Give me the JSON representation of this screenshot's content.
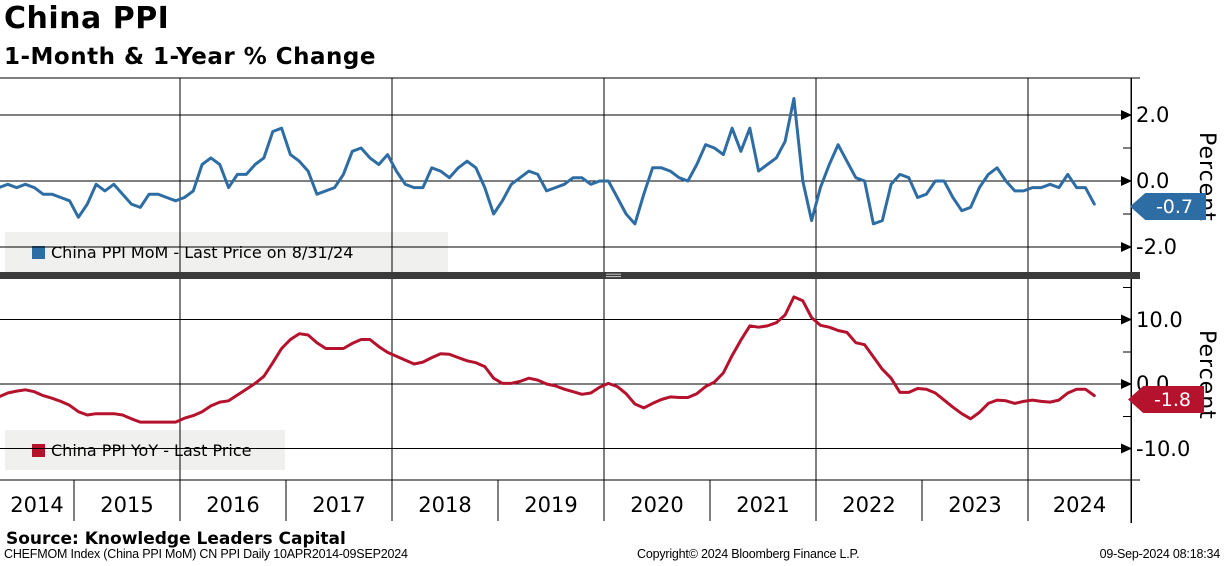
{
  "header": {
    "title": "China PPI",
    "subtitle": "1-Month & 1-Year % Change"
  },
  "x_axis": {
    "years": [
      "2014",
      "2015",
      "2016",
      "2017",
      "2018",
      "2019",
      "2020",
      "2021",
      "2022",
      "2023",
      "2024"
    ]
  },
  "x_gridline_years": [
    2016,
    2018,
    2020,
    2022,
    2024
  ],
  "colors": {
    "mom": "#2e6da4",
    "yoy": "#b5122d",
    "separator": "#3b3b3b",
    "legend_bg": "#f0f0ef",
    "grid": "#000000"
  },
  "footer": {
    "source": "Source: Knowledge Leaders Capital",
    "ticker_info": "CHEFMOM Index (China PPI MoM) CN PPI  Daily 10APR2014-09SEP2024",
    "copyright": "Copyright© 2024 Bloomberg Finance L.P.",
    "timestamp": "09-Sep-2024 08:18:34"
  },
  "chart_data": [
    {
      "type": "line",
      "name": "China PPI MoM",
      "legend": "China PPI MoM - Last Price on 8/31/24",
      "color": "#2e6da4",
      "ylabel": "Percent",
      "unit": "1-month % change",
      "frequency": "monthly",
      "start": {
        "year": 2014,
        "month": 4
      },
      "end": {
        "year": 2024,
        "month": 8
      },
      "last_price_label": "-0.7",
      "last_value": -0.7,
      "ylim": [
        -2.7,
        3.1
      ],
      "grid": true,
      "legend_position": "bottom-left-inside",
      "yticks": [
        {
          "value": 2,
          "label": "2.0"
        },
        {
          "value": 0,
          "label": "0.0"
        },
        {
          "value": -2,
          "label": "-2.0"
        }
      ],
      "minor_yticks": [
        1,
        -1
      ],
      "values": [
        -0.2,
        -0.1,
        -0.2,
        -0.1,
        -0.2,
        -0.4,
        -0.4,
        -0.5,
        -0.6,
        -1.1,
        -0.7,
        -0.1,
        -0.3,
        -0.1,
        -0.4,
        -0.7,
        -0.8,
        -0.4,
        -0.4,
        -0.5,
        -0.6,
        -0.5,
        -0.3,
        0.5,
        0.7,
        0.5,
        -0.2,
        0.2,
        0.2,
        0.5,
        0.7,
        1.5,
        1.6,
        0.8,
        0.6,
        0.3,
        -0.4,
        -0.3,
        -0.2,
        0.2,
        0.9,
        1.0,
        0.7,
        0.5,
        0.8,
        0.3,
        -0.1,
        -0.2,
        -0.2,
        0.4,
        0.3,
        0.1,
        0.4,
        0.6,
        0.4,
        -0.2,
        -1.0,
        -0.6,
        -0.1,
        0.1,
        0.3,
        0.2,
        -0.3,
        -0.2,
        -0.1,
        0.1,
        0.1,
        -0.1,
        0.0,
        0.0,
        -0.5,
        -1.0,
        -1.3,
        -0.4,
        0.4,
        0.4,
        0.3,
        0.1,
        0.0,
        0.5,
        1.1,
        1.0,
        0.8,
        1.6,
        0.9,
        1.6,
        0.3,
        0.5,
        0.7,
        1.2,
        2.5,
        0.0,
        -1.2,
        -0.2,
        0.5,
        1.1,
        0.6,
        0.1,
        0.0,
        -1.3,
        -1.2,
        -0.1,
        0.2,
        0.1,
        -0.5,
        -0.4,
        0.0,
        0.0,
        -0.5,
        -0.9,
        -0.8,
        -0.2,
        0.2,
        0.4,
        0.0,
        -0.3,
        -0.3,
        -0.2,
        -0.2,
        -0.1,
        -0.2,
        0.2,
        -0.2,
        -0.2,
        -0.7
      ]
    },
    {
      "type": "line",
      "name": "China PPI YoY",
      "legend": "China PPI YoY - Last Price",
      "color": "#b5122d",
      "ylabel": "Percent",
      "unit": "1-year % change",
      "frequency": "monthly",
      "start": {
        "year": 2014,
        "month": 4
      },
      "end": {
        "year": 2024,
        "month": 8
      },
      "last_price_label": "-1.8",
      "last_value": -1.8,
      "ylim": [
        -15.0,
        16.5
      ],
      "grid": true,
      "legend_position": "bottom-left-inside",
      "yticks": [
        {
          "value": 10,
          "label": "10.0"
        },
        {
          "value": 0,
          "label": "0.0"
        },
        {
          "value": -10,
          "label": "-10.0"
        }
      ],
      "minor_yticks": [
        15,
        5,
        -5
      ],
      "values": [
        -2.0,
        -1.4,
        -1.1,
        -0.9,
        -1.2,
        -1.8,
        -2.2,
        -2.7,
        -3.3,
        -4.3,
        -4.8,
        -4.6,
        -4.6,
        -4.6,
        -4.8,
        -5.4,
        -5.9,
        -5.9,
        -5.9,
        -5.9,
        -5.9,
        -5.3,
        -4.9,
        -4.3,
        -3.4,
        -2.8,
        -2.6,
        -1.7,
        -0.8,
        0.1,
        1.2,
        3.3,
        5.5,
        6.9,
        7.8,
        7.6,
        6.4,
        5.5,
        5.5,
        5.5,
        6.3,
        6.9,
        6.9,
        5.8,
        4.9,
        4.3,
        3.7,
        3.1,
        3.4,
        4.1,
        4.7,
        4.6,
        4.1,
        3.6,
        3.3,
        2.7,
        0.9,
        0.1,
        0.1,
        0.4,
        0.9,
        0.6,
        0.0,
        -0.3,
        -0.8,
        -1.2,
        -1.6,
        -1.4,
        -0.5,
        0.1,
        -0.4,
        -1.5,
        -3.1,
        -3.7,
        -3.0,
        -2.4,
        -2.0,
        -2.1,
        -2.1,
        -1.5,
        -0.4,
        0.3,
        1.7,
        4.4,
        6.8,
        9.0,
        8.8,
        9.0,
        9.5,
        10.7,
        13.5,
        12.9,
        10.3,
        9.1,
        8.8,
        8.3,
        8.0,
        6.4,
        6.1,
        4.2,
        2.3,
        0.9,
        -1.3,
        -1.3,
        -0.7,
        -0.8,
        -1.4,
        -2.5,
        -3.6,
        -4.6,
        -5.4,
        -4.4,
        -3.0,
        -2.5,
        -2.6,
        -3.0,
        -2.7,
        -2.5,
        -2.7,
        -2.8,
        -2.5,
        -1.4,
        -0.8,
        -0.8,
        -1.8
      ]
    }
  ]
}
